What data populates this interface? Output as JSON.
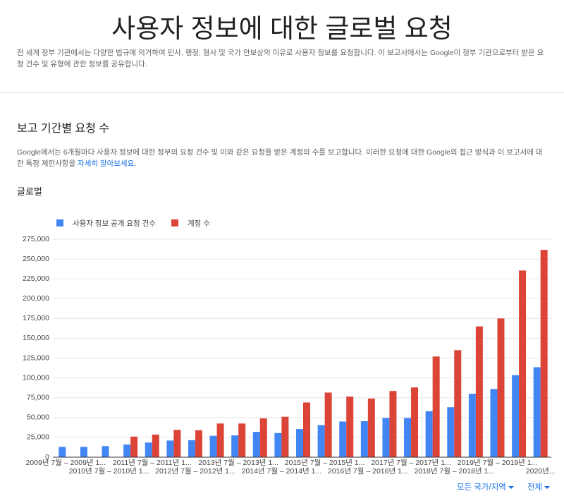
{
  "header": {
    "title": "사용자 정보에 대한 글로벌 요청",
    "description": "전 세계 정부 기관에서는 다양한 법규에 의거하여 민사, 행정, 형사 및 국가 안보상의 이유로 사용자 정보를 요청합니다. 이 보고서에서는 Google이 정부 기관으로부터 받은 요청 건수 및 유형에 관한 정보를 공유합니다."
  },
  "section": {
    "title": "보고 기간별 요청 수",
    "intro": "Google에서는 6개월마다 사용자 정보에 대한 정부의 요청 건수 및 이와 같은 요청을 받은 계정의 수를 보고합니다. 이러한 요청에 대한 Google의 접근 방식과 이 보고서에 대한 특정 제한사항을 ",
    "link": "자세히 알아보세요",
    "intro_end": ".",
    "subtitle": "글로벌"
  },
  "chart_data": {
    "type": "bar",
    "categories": [
      "2009년 7월 – 2009년 1...",
      null,
      "2010년 7월 – 2010년 1...",
      null,
      "2011년 7월 – 2011년 1...",
      null,
      "2012년 7월 – 2012년 1...",
      null,
      "2013년 7월 – 2013년 1...",
      null,
      "2014년 7월 – 2014년 1...",
      null,
      "2015년 7월 – 2015년 1...",
      null,
      "2016년 7월 – 2016년 1...",
      null,
      "2017년 7월 – 2017년 1...",
      null,
      "2018년 7월 – 2018년 1...",
      null,
      "2019년 7월 – 2019년 1...",
      null,
      "2020년..."
    ],
    "series": [
      {
        "name": "사용자 정보 공개 요청 건수",
        "color": "#4285f4",
        "values": [
          13000,
          13000,
          14000,
          16000,
          18500,
          21000,
          21500,
          27000,
          27500,
          32000,
          30500,
          35500,
          40500,
          45000,
          45500,
          49500,
          49500,
          58000,
          63000,
          80000,
          86000,
          103500,
          113500
        ]
      },
      {
        "name": "계정 수",
        "color": "#db4437",
        "values": [
          null,
          null,
          null,
          26000,
          28500,
          34500,
          34000,
          42500,
          42500,
          49000,
          51000,
          69000,
          81500,
          76500,
          74000,
          83500,
          88000,
          127000,
          135000,
          165000,
          175000,
          235500,
          261500
        ]
      }
    ],
    "ylim": [
      0,
      275000
    ],
    "yticks": [
      0,
      {
        "value": 25000,
        "label": "25,000"
      },
      {
        "value": 50000,
        "label": "50,000"
      },
      {
        "value": 75000,
        "label": "75,000"
      },
      {
        "value": 100000,
        "label": "100,000"
      },
      {
        "value": 125000,
        "label": "125,000"
      },
      {
        "value": 150000,
        "label": "150,000"
      },
      {
        "value": 175000,
        "label": "175,000"
      },
      {
        "value": 200000,
        "label": "200,000"
      },
      {
        "value": 225000,
        "label": "225,000"
      },
      {
        "value": 250000,
        "label": "250,000"
      },
      {
        "value": 275000,
        "label": "275,000"
      }
    ],
    "grid": true,
    "legend": "top"
  },
  "filters": {
    "region": "모든 국가/지역",
    "period": "전체"
  }
}
